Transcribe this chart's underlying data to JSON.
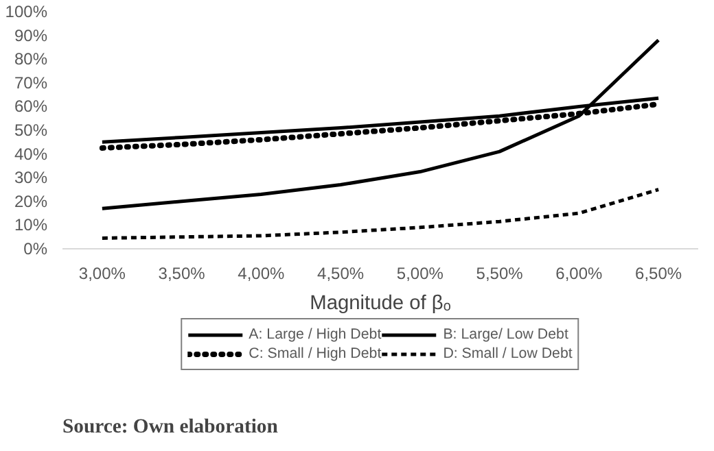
{
  "chart_data": {
    "type": "line",
    "xlabel": "Magnitude of βₒ",
    "categories": [
      "3,00%",
      "3,50%",
      "4,00%",
      "4,50%",
      "5,00%",
      "5,50%",
      "6,00%",
      "6,50%"
    ],
    "series": [
      {
        "name": "A: Large / High Debt",
        "color": "#000000",
        "line_style": "solid",
        "values": [
          45,
          47,
          49,
          51,
          53.5,
          56,
          60,
          63.5
        ]
      },
      {
        "name": "B: Large/ Low Debt",
        "color": "#000000",
        "line_style": "solid",
        "values": [
          17,
          20,
          23,
          27,
          32.5,
          41,
          56,
          88
        ]
      },
      {
        "name": "C: Small / High Debt",
        "color": "#000000",
        "line_style": "dotted",
        "values": [
          42.5,
          44,
          46,
          48.5,
          51,
          54,
          57,
          61
        ]
      },
      {
        "name": "D: Small / Low Debt",
        "color": "#000000",
        "line_style": "dashed",
        "values": [
          4.5,
          5,
          5.5,
          7,
          9,
          11.5,
          15,
          25
        ]
      }
    ],
    "ylim": [
      0,
      100
    ],
    "yticks": [
      {
        "value": 0,
        "label": "0%"
      },
      {
        "value": 10,
        "label": "10%"
      },
      {
        "value": 20,
        "label": "20%"
      },
      {
        "value": 30,
        "label": "30%"
      },
      {
        "value": 40,
        "label": "40%"
      },
      {
        "value": 50,
        "label": "50%"
      },
      {
        "value": 60,
        "label": "60%"
      },
      {
        "value": 70,
        "label": "70%"
      },
      {
        "value": 80,
        "label": "80%"
      },
      {
        "value": 90,
        "label": "90%"
      },
      {
        "value": 100,
        "label": "100%"
      }
    ],
    "grid": false,
    "legend": "bottom",
    "marker": "none",
    "annotations": [
      "Source: Own elaboration"
    ]
  }
}
